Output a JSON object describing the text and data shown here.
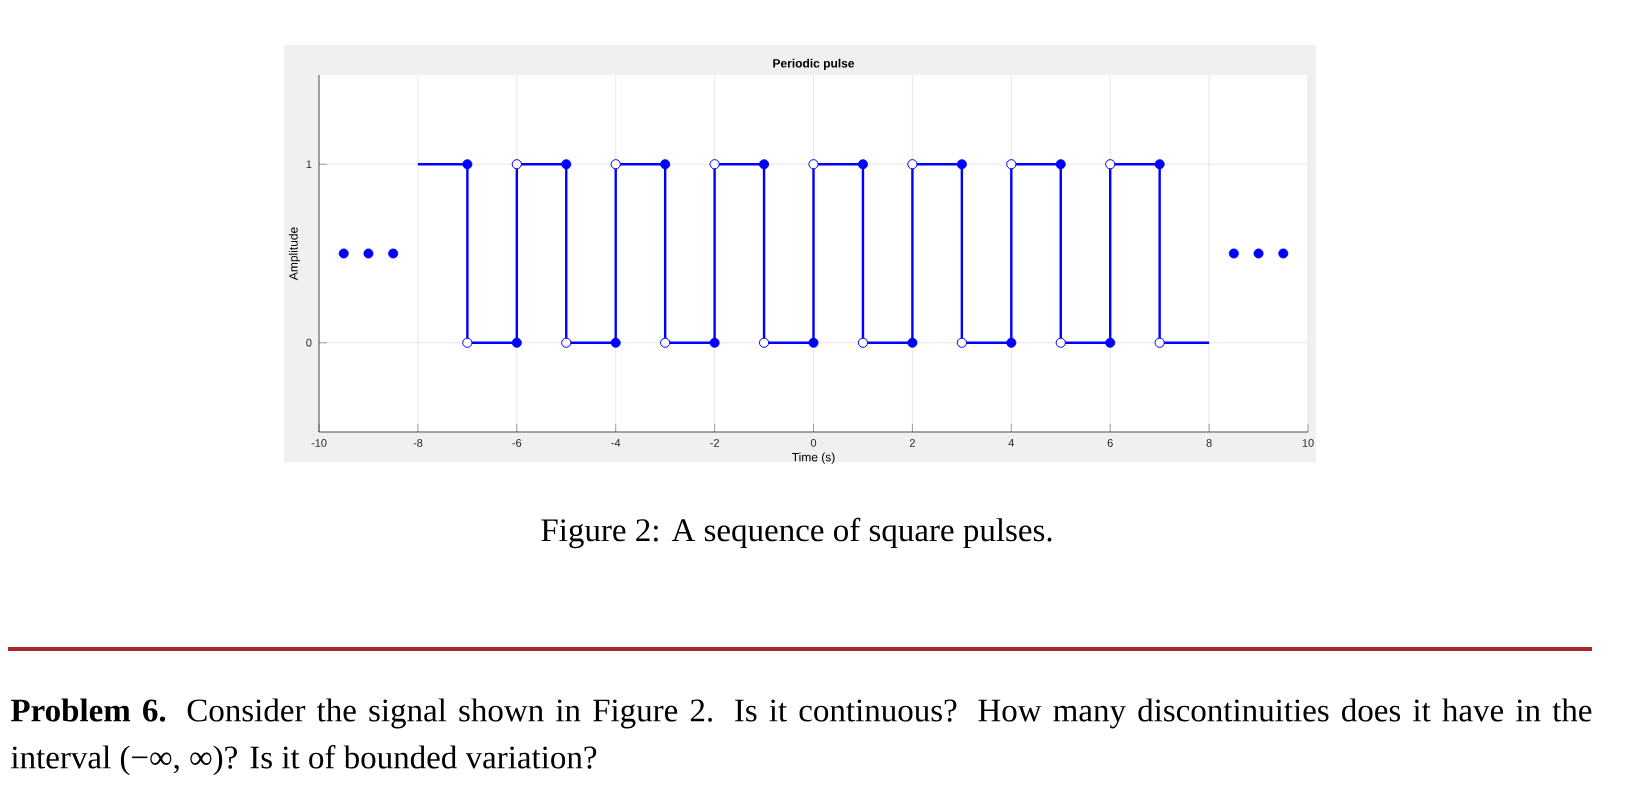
{
  "chart_data": {
    "type": "step",
    "title": "Periodic pulse",
    "xlabel": "Time (s)",
    "ylabel": "Amplitude",
    "xlim": [
      -10,
      10
    ],
    "ylim": [
      -0.5,
      1.5
    ],
    "xticks": [
      -10,
      -8,
      -6,
      -4,
      -2,
      0,
      2,
      4,
      6,
      8,
      10
    ],
    "yticks": [
      0,
      1
    ],
    "grid": true,
    "series": [
      {
        "color": "#0000ff",
        "marker": "none",
        "x": [
          -8,
          -7,
          -6,
          -5,
          -4,
          -3,
          -2,
          -1,
          0,
          1,
          2,
          3,
          4,
          5,
          6,
          7,
          8
        ],
        "values": [
          1,
          0,
          1,
          0,
          1,
          0,
          1,
          0,
          1,
          0,
          1,
          0,
          1,
          0,
          1,
          0,
          0
        ]
      },
      {
        "type": "scatter",
        "color": "#0000ff",
        "marker": "circle",
        "x": [
          -7,
          -6,
          -5,
          -4,
          -3,
          -2,
          -1,
          0,
          1,
          2,
          3,
          4,
          5,
          6,
          7
        ],
        "values": [
          1,
          0,
          1,
          0,
          1,
          0,
          1,
          0,
          1,
          0,
          1,
          0,
          1,
          0,
          1
        ]
      },
      {
        "type": "scatter",
        "color": "#ffffff",
        "marker": "circle",
        "x": [
          -7,
          -6,
          -5,
          -4,
          -3,
          -2,
          -1,
          0,
          1,
          2,
          3,
          4,
          5,
          6,
          7
        ],
        "values": [
          0,
          1,
          0,
          1,
          0,
          1,
          0,
          1,
          0,
          1,
          0,
          1,
          0,
          1,
          0
        ]
      },
      {
        "type": "scatter",
        "color": "#0000ff",
        "marker": "circle",
        "x": [
          -9.5,
          -9,
          -8.5,
          8.5,
          9,
          9.5
        ],
        "values": [
          0.5,
          0.5,
          0.5,
          0.5,
          0.5,
          0.5
        ]
      }
    ],
    "annotations": [
      "Figure 2: A sequence of square pulses.",
      "**Problem 6.** Consider the signal shown in Figure 2. Is it continuous? How many discontinuities does it have in the interval (−∞, ∞)? Is it of bounded variation?"
    ]
  }
}
